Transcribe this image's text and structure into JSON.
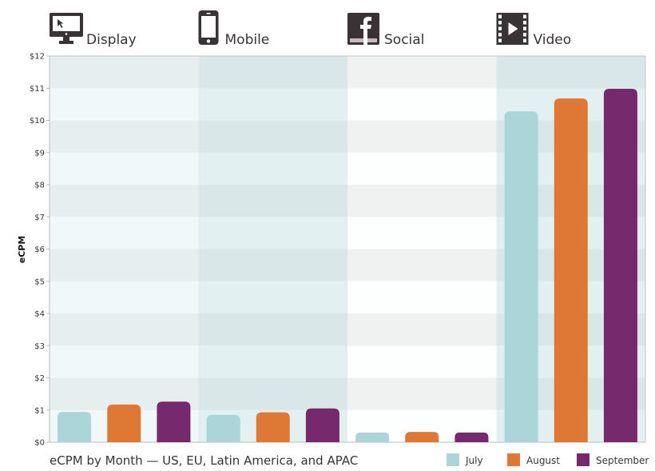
{
  "chart_data": {
    "type": "bar",
    "title": "eCPM by Month — US, EU, Latin America, and APAC",
    "xlabel": "",
    "ylabel": "eCPM",
    "ylim": [
      0,
      12
    ],
    "yticks": [
      "$0",
      "$1",
      "$2",
      "$3",
      "$4",
      "$5",
      "$6",
      "$7",
      "$8",
      "$9",
      "$10",
      "$11",
      "$12"
    ],
    "grid": "alternating horizontal bands",
    "legend_position": "bottom-right",
    "categories": [
      "Display",
      "Mobile",
      "Social",
      "Video"
    ],
    "category_icons": [
      "monitor-cursor-icon",
      "smartphone-icon",
      "facebook-icon",
      "film-play-icon"
    ],
    "series": [
      {
        "name": "July",
        "color": "#acd5da",
        "values": [
          0.94,
          0.85,
          0.3,
          10.28
        ]
      },
      {
        "name": "August",
        "color": "#df7835",
        "values": [
          1.17,
          0.93,
          0.32,
          10.68
        ]
      },
      {
        "name": "September",
        "color": "#76296d",
        "values": [
          1.26,
          1.05,
          0.3,
          10.98
        ]
      }
    ]
  }
}
